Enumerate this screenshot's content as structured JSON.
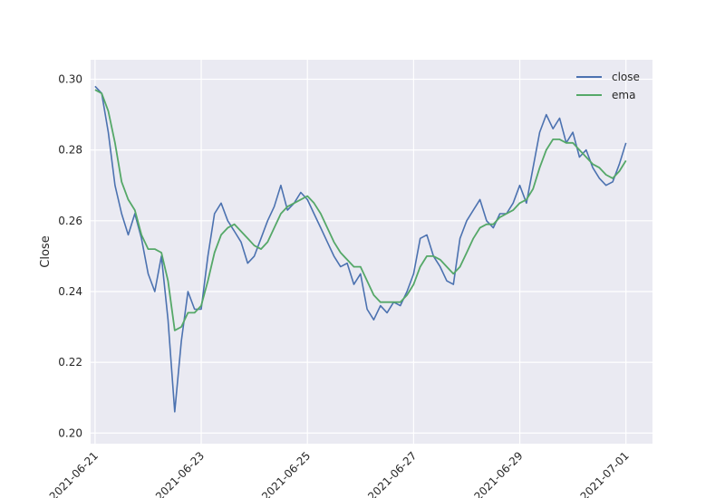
{
  "chart_data": {
    "type": "line",
    "title": "",
    "xlabel": "",
    "ylabel": "Close",
    "x_ticks": [
      "2021-06-21",
      "2021-06-23",
      "2021-06-25",
      "2021-06-27",
      "2021-06-29",
      "2021-07-01"
    ],
    "y_ticks": [
      "0.20",
      "0.22",
      "0.24",
      "0.26",
      "0.28",
      "0.30"
    ],
    "xlim": [
      "2021-06-20 22:00",
      "2021-07-01 12:00"
    ],
    "ylim": [
      0.197,
      0.3055
    ],
    "grid": true,
    "legend_position": "top-right",
    "colors": {
      "background": "#eaeaf2",
      "grid": "#ffffff",
      "close": "#4c72b0",
      "ema": "#55a868"
    },
    "series": [
      {
        "name": "close",
        "points": [
          [
            "2021-06-21 00:00",
            0.298
          ],
          [
            "2021-06-21 03:00",
            0.296
          ],
          [
            "2021-06-21 06:00",
            0.285
          ],
          [
            "2021-06-21 09:00",
            0.27
          ],
          [
            "2021-06-21 12:00",
            0.262
          ],
          [
            "2021-06-21 15:00",
            0.256
          ],
          [
            "2021-06-21 18:00",
            0.262
          ],
          [
            "2021-06-21 21:00",
            0.255
          ],
          [
            "2021-06-22 00:00",
            0.245
          ],
          [
            "2021-06-22 03:00",
            0.24
          ],
          [
            "2021-06-22 06:00",
            0.25
          ],
          [
            "2021-06-22 09:00",
            0.232
          ],
          [
            "2021-06-22 12:00",
            0.206
          ],
          [
            "2021-06-22 15:00",
            0.226
          ],
          [
            "2021-06-22 18:00",
            0.24
          ],
          [
            "2021-06-22 21:00",
            0.235
          ],
          [
            "2021-06-23 00:00",
            0.235
          ],
          [
            "2021-06-23 03:00",
            0.25
          ],
          [
            "2021-06-23 06:00",
            0.262
          ],
          [
            "2021-06-23 09:00",
            0.265
          ],
          [
            "2021-06-23 12:00",
            0.26
          ],
          [
            "2021-06-23 15:00",
            0.257
          ],
          [
            "2021-06-23 18:00",
            0.254
          ],
          [
            "2021-06-23 21:00",
            0.248
          ],
          [
            "2021-06-24 00:00",
            0.25
          ],
          [
            "2021-06-24 03:00",
            0.255
          ],
          [
            "2021-06-24 06:00",
            0.26
          ],
          [
            "2021-06-24 09:00",
            0.264
          ],
          [
            "2021-06-24 12:00",
            0.27
          ],
          [
            "2021-06-24 15:00",
            0.263
          ],
          [
            "2021-06-24 18:00",
            0.265
          ],
          [
            "2021-06-24 21:00",
            0.268
          ],
          [
            "2021-06-25 00:00",
            0.266
          ],
          [
            "2021-06-25 03:00",
            0.262
          ],
          [
            "2021-06-25 06:00",
            0.258
          ],
          [
            "2021-06-25 09:00",
            0.254
          ],
          [
            "2021-06-25 12:00",
            0.25
          ],
          [
            "2021-06-25 15:00",
            0.247
          ],
          [
            "2021-06-25 18:00",
            0.248
          ],
          [
            "2021-06-25 21:00",
            0.242
          ],
          [
            "2021-06-26 00:00",
            0.245
          ],
          [
            "2021-06-26 03:00",
            0.235
          ],
          [
            "2021-06-26 06:00",
            0.232
          ],
          [
            "2021-06-26 09:00",
            0.236
          ],
          [
            "2021-06-26 12:00",
            0.234
          ],
          [
            "2021-06-26 15:00",
            0.237
          ],
          [
            "2021-06-26 18:00",
            0.236
          ],
          [
            "2021-06-26 21:00",
            0.24
          ],
          [
            "2021-06-27 00:00",
            0.245
          ],
          [
            "2021-06-27 03:00",
            0.255
          ],
          [
            "2021-06-27 06:00",
            0.256
          ],
          [
            "2021-06-27 09:00",
            0.25
          ],
          [
            "2021-06-27 12:00",
            0.247
          ],
          [
            "2021-06-27 15:00",
            0.243
          ],
          [
            "2021-06-27 18:00",
            0.242
          ],
          [
            "2021-06-27 21:00",
            0.255
          ],
          [
            "2021-06-28 00:00",
            0.26
          ],
          [
            "2021-06-28 03:00",
            0.263
          ],
          [
            "2021-06-28 06:00",
            0.266
          ],
          [
            "2021-06-28 09:00",
            0.26
          ],
          [
            "2021-06-28 12:00",
            0.258
          ],
          [
            "2021-06-28 15:00",
            0.262
          ],
          [
            "2021-06-28 18:00",
            0.262
          ],
          [
            "2021-06-28 21:00",
            0.265
          ],
          [
            "2021-06-29 00:00",
            0.27
          ],
          [
            "2021-06-29 03:00",
            0.265
          ],
          [
            "2021-06-29 06:00",
            0.275
          ],
          [
            "2021-06-29 09:00",
            0.285
          ],
          [
            "2021-06-29 12:00",
            0.29
          ],
          [
            "2021-06-29 15:00",
            0.286
          ],
          [
            "2021-06-29 18:00",
            0.289
          ],
          [
            "2021-06-29 21:00",
            0.282
          ],
          [
            "2021-06-30 00:00",
            0.285
          ],
          [
            "2021-06-30 03:00",
            0.278
          ],
          [
            "2021-06-30 06:00",
            0.28
          ],
          [
            "2021-06-30 09:00",
            0.275
          ],
          [
            "2021-06-30 12:00",
            0.272
          ],
          [
            "2021-06-30 15:00",
            0.27
          ],
          [
            "2021-06-30 18:00",
            0.271
          ],
          [
            "2021-06-30 21:00",
            0.276
          ],
          [
            "2021-07-01 00:00",
            0.282
          ]
        ]
      },
      {
        "name": "ema",
        "points": [
          [
            "2021-06-21 00:00",
            0.297
          ],
          [
            "2021-06-21 03:00",
            0.296
          ],
          [
            "2021-06-21 06:00",
            0.291
          ],
          [
            "2021-06-21 09:00",
            0.282
          ],
          [
            "2021-06-21 12:00",
            0.271
          ],
          [
            "2021-06-21 15:00",
            0.266
          ],
          [
            "2021-06-21 18:00",
            0.263
          ],
          [
            "2021-06-21 21:00",
            0.256
          ],
          [
            "2021-06-22 00:00",
            0.252
          ],
          [
            "2021-06-22 03:00",
            0.252
          ],
          [
            "2021-06-22 06:00",
            0.251
          ],
          [
            "2021-06-22 09:00",
            0.243
          ],
          [
            "2021-06-22 12:00",
            0.229
          ],
          [
            "2021-06-22 15:00",
            0.23
          ],
          [
            "2021-06-22 18:00",
            0.234
          ],
          [
            "2021-06-22 21:00",
            0.234
          ],
          [
            "2021-06-23 00:00",
            0.236
          ],
          [
            "2021-06-23 03:00",
            0.243
          ],
          [
            "2021-06-23 06:00",
            0.251
          ],
          [
            "2021-06-23 09:00",
            0.256
          ],
          [
            "2021-06-23 12:00",
            0.258
          ],
          [
            "2021-06-23 15:00",
            0.259
          ],
          [
            "2021-06-23 18:00",
            0.257
          ],
          [
            "2021-06-23 21:00",
            0.255
          ],
          [
            "2021-06-24 00:00",
            0.253
          ],
          [
            "2021-06-24 03:00",
            0.252
          ],
          [
            "2021-06-24 06:00",
            0.254
          ],
          [
            "2021-06-24 09:00",
            0.258
          ],
          [
            "2021-06-24 12:00",
            0.262
          ],
          [
            "2021-06-24 15:00",
            0.264
          ],
          [
            "2021-06-24 18:00",
            0.265
          ],
          [
            "2021-06-24 21:00",
            0.266
          ],
          [
            "2021-06-25 00:00",
            0.267
          ],
          [
            "2021-06-25 03:00",
            0.265
          ],
          [
            "2021-06-25 06:00",
            0.262
          ],
          [
            "2021-06-25 09:00",
            0.258
          ],
          [
            "2021-06-25 12:00",
            0.254
          ],
          [
            "2021-06-25 15:00",
            0.251
          ],
          [
            "2021-06-25 18:00",
            0.249
          ],
          [
            "2021-06-25 21:00",
            0.247
          ],
          [
            "2021-06-26 00:00",
            0.247
          ],
          [
            "2021-06-26 03:00",
            0.243
          ],
          [
            "2021-06-26 06:00",
            0.239
          ],
          [
            "2021-06-26 09:00",
            0.237
          ],
          [
            "2021-06-26 12:00",
            0.237
          ],
          [
            "2021-06-26 15:00",
            0.237
          ],
          [
            "2021-06-26 18:00",
            0.237
          ],
          [
            "2021-06-26 21:00",
            0.239
          ],
          [
            "2021-06-27 00:00",
            0.242
          ],
          [
            "2021-06-27 03:00",
            0.247
          ],
          [
            "2021-06-27 06:00",
            0.25
          ],
          [
            "2021-06-27 09:00",
            0.25
          ],
          [
            "2021-06-27 12:00",
            0.249
          ],
          [
            "2021-06-27 15:00",
            0.247
          ],
          [
            "2021-06-27 18:00",
            0.245
          ],
          [
            "2021-06-27 21:00",
            0.247
          ],
          [
            "2021-06-28 00:00",
            0.251
          ],
          [
            "2021-06-28 03:00",
            0.255
          ],
          [
            "2021-06-28 06:00",
            0.258
          ],
          [
            "2021-06-28 09:00",
            0.259
          ],
          [
            "2021-06-28 12:00",
            0.259
          ],
          [
            "2021-06-28 15:00",
            0.261
          ],
          [
            "2021-06-28 18:00",
            0.262
          ],
          [
            "2021-06-28 21:00",
            0.263
          ],
          [
            "2021-06-29 00:00",
            0.265
          ],
          [
            "2021-06-29 03:00",
            0.266
          ],
          [
            "2021-06-29 06:00",
            0.269
          ],
          [
            "2021-06-29 09:00",
            0.275
          ],
          [
            "2021-06-29 12:00",
            0.28
          ],
          [
            "2021-06-29 15:00",
            0.283
          ],
          [
            "2021-06-29 18:00",
            0.283
          ],
          [
            "2021-06-29 21:00",
            0.282
          ],
          [
            "2021-06-30 00:00",
            0.282
          ],
          [
            "2021-06-30 03:00",
            0.28
          ],
          [
            "2021-06-30 06:00",
            0.278
          ],
          [
            "2021-06-30 09:00",
            0.276
          ],
          [
            "2021-06-30 12:00",
            0.275
          ],
          [
            "2021-06-30 15:00",
            0.273
          ],
          [
            "2021-06-30 18:00",
            0.272
          ],
          [
            "2021-06-30 21:00",
            0.274
          ],
          [
            "2021-07-01 00:00",
            0.277
          ]
        ]
      }
    ]
  }
}
